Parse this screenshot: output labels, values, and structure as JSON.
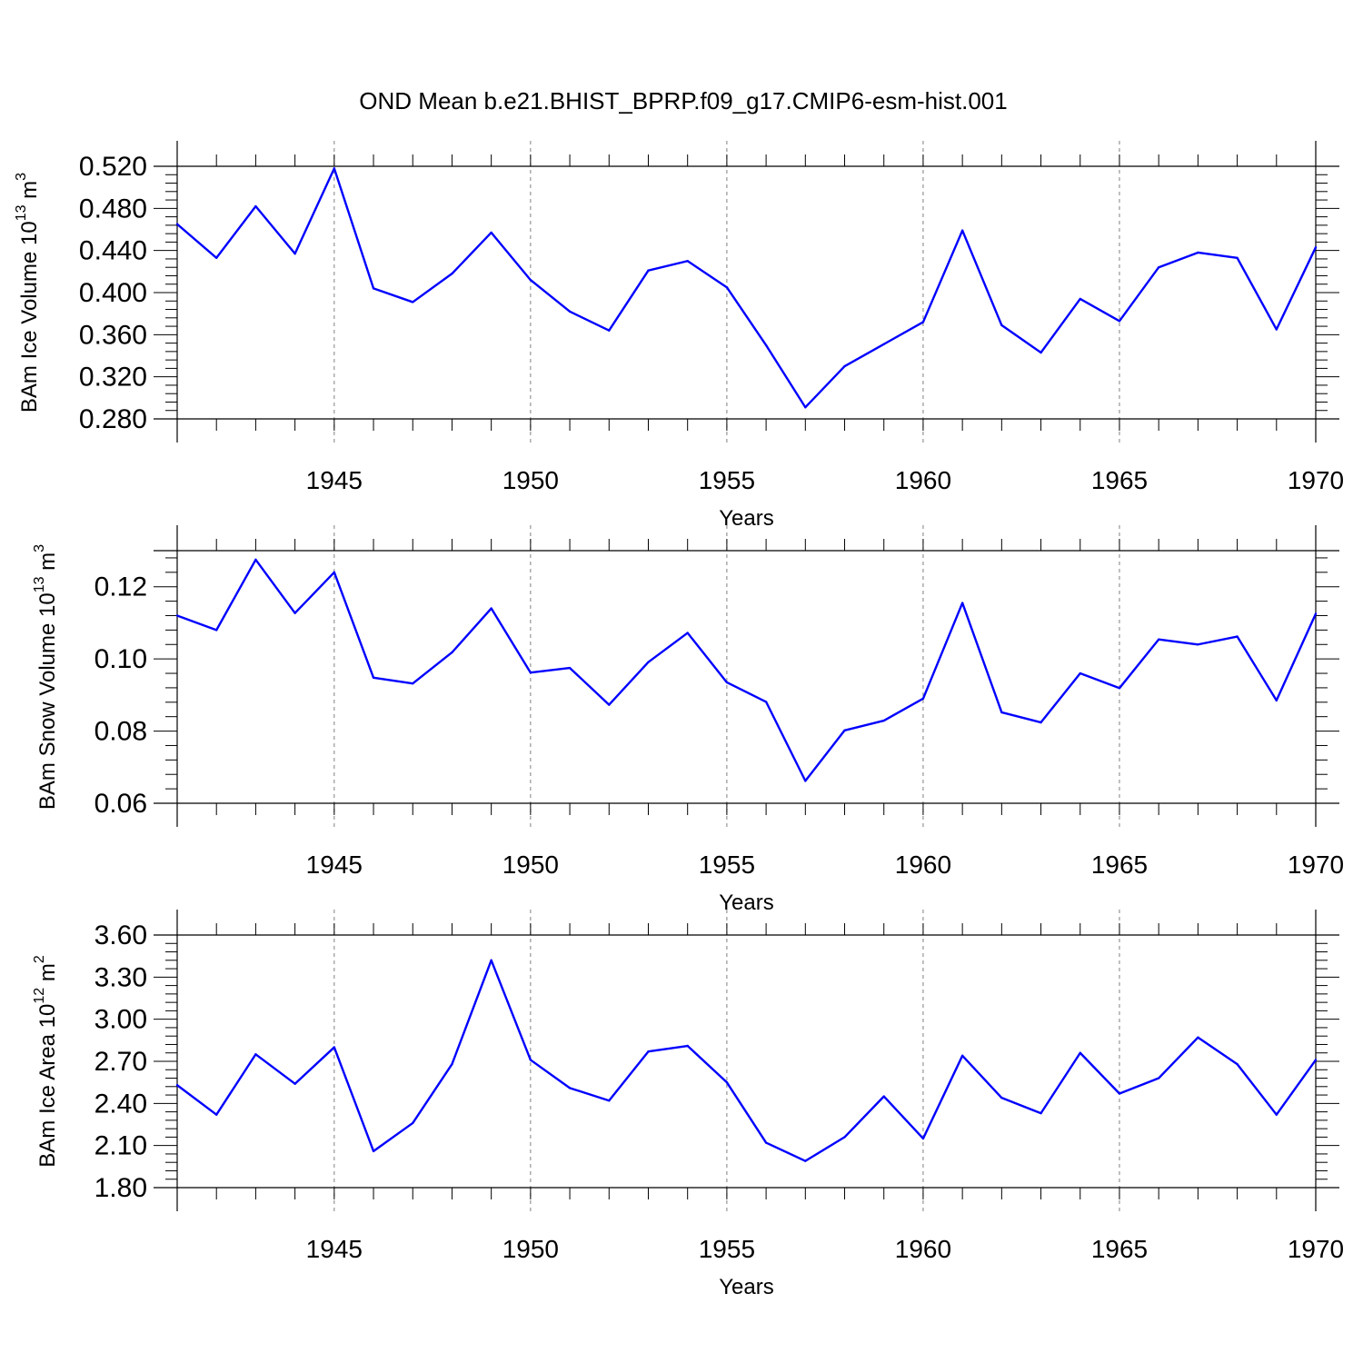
{
  "title": "OND Mean b.e21.BHIST_BPRP.f09_g17.CMIP6-esm-hist.001",
  "colors": {
    "line": "#0000ff",
    "axis": "#000000",
    "grid": "#808080",
    "background": "#ffffff"
  },
  "chart_data": [
    {
      "type": "line",
      "ylabel": "BAm Ice Volume 10^13 m^3",
      "ylabel_main": "BAm Ice Volume 10",
      "ylabel_exp": "13",
      "ylabel_unit": " m",
      "ylabel_unit_exp": "3",
      "xlabel": "Years",
      "xlim": [
        1941,
        1970
      ],
      "ylim": [
        0.28,
        0.52
      ],
      "yticks": [
        0.28,
        0.32,
        0.36,
        0.4,
        0.44,
        0.48,
        0.52
      ],
      "ytick_labels": [
        "0.280",
        "0.320",
        "0.360",
        "0.400",
        "0.440",
        "0.480",
        "0.520"
      ],
      "xticks": [
        1945,
        1950,
        1955,
        1960,
        1965,
        1970
      ],
      "xtick_labels": [
        "1945",
        "1950",
        "1955",
        "1960",
        "1965",
        "1970"
      ],
      "grid_x": true,
      "x": [
        1941,
        1942,
        1943,
        1944,
        1945,
        1946,
        1947,
        1948,
        1949,
        1950,
        1951,
        1952,
        1953,
        1954,
        1955,
        1956,
        1957,
        1958,
        1959,
        1960,
        1961,
        1962,
        1963,
        1964,
        1965,
        1966,
        1967,
        1968,
        1969,
        1970
      ],
      "values": [
        0.465,
        0.433,
        0.482,
        0.437,
        0.518,
        0.404,
        0.391,
        0.418,
        0.457,
        0.412,
        0.382,
        0.364,
        0.421,
        0.43,
        0.405,
        0.35,
        0.291,
        0.33,
        0.351,
        0.372,
        0.459,
        0.369,
        0.343,
        0.394,
        0.373,
        0.424,
        0.438,
        0.433,
        0.365,
        0.443
      ]
    },
    {
      "type": "line",
      "ylabel": "BAm Snow Volume 10^13 m^3",
      "ylabel_main": "BAm Snow Volume 10",
      "ylabel_exp": "13",
      "ylabel_unit": " m",
      "ylabel_unit_exp": "3",
      "xlabel": "Years",
      "xlim": [
        1941,
        1970
      ],
      "ylim": [
        0.06,
        0.13
      ],
      "yticks": [
        0.06,
        0.08,
        0.1,
        0.12
      ],
      "ytick_labels": [
        "0.06",
        "0.08",
        "0.10",
        "0.12"
      ],
      "xticks": [
        1945,
        1950,
        1955,
        1960,
        1965,
        1970
      ],
      "xtick_labels": [
        "1945",
        "1950",
        "1955",
        "1960",
        "1965",
        "1970"
      ],
      "grid_x": true,
      "x": [
        1941,
        1942,
        1943,
        1944,
        1945,
        1946,
        1947,
        1948,
        1949,
        1950,
        1951,
        1952,
        1953,
        1954,
        1955,
        1956,
        1957,
        1958,
        1959,
        1960,
        1961,
        1962,
        1963,
        1964,
        1965,
        1966,
        1967,
        1968,
        1969,
        1970
      ],
      "values": [
        0.112,
        0.108,
        0.1275,
        0.1127,
        0.124,
        0.0948,
        0.0932,
        0.1018,
        0.114,
        0.0962,
        0.0975,
        0.0873,
        0.0991,
        0.1072,
        0.0935,
        0.0881,
        0.0662,
        0.0802,
        0.0829,
        0.089,
        0.1155,
        0.0852,
        0.0824,
        0.096,
        0.0919,
        0.1054,
        0.104,
        0.1062,
        0.0885,
        0.1125
      ]
    },
    {
      "type": "line",
      "ylabel": "BAm Ice Area 10^12 m^2",
      "ylabel_main": "BAm Ice Area 10",
      "ylabel_exp": "12",
      "ylabel_unit": " m",
      "ylabel_unit_exp": "2",
      "xlabel": "Years",
      "xlim": [
        1941,
        1970
      ],
      "ylim": [
        1.8,
        3.6
      ],
      "yticks": [
        1.8,
        2.1,
        2.4,
        2.7,
        3.0,
        3.3,
        3.6
      ],
      "ytick_labels": [
        "1.80",
        "2.10",
        "2.40",
        "2.70",
        "3.00",
        "3.30",
        "3.60"
      ],
      "xticks": [
        1945,
        1950,
        1955,
        1960,
        1965,
        1970
      ],
      "xtick_labels": [
        "1945",
        "1950",
        "1955",
        "1960",
        "1965",
        "1970"
      ],
      "grid_x": true,
      "x": [
        1941,
        1942,
        1943,
        1944,
        1945,
        1946,
        1947,
        1948,
        1949,
        1950,
        1951,
        1952,
        1953,
        1954,
        1955,
        1956,
        1957,
        1958,
        1959,
        1960,
        1961,
        1962,
        1963,
        1964,
        1965,
        1966,
        1967,
        1968,
        1969,
        1970
      ],
      "values": [
        2.53,
        2.32,
        2.75,
        2.54,
        2.8,
        2.06,
        2.26,
        2.68,
        3.42,
        2.71,
        2.51,
        2.42,
        2.77,
        2.81,
        2.55,
        2.12,
        1.99,
        2.16,
        2.45,
        2.15,
        2.74,
        2.44,
        2.33,
        2.76,
        2.47,
        2.58,
        2.87,
        2.68,
        2.32,
        2.71
      ]
    }
  ]
}
